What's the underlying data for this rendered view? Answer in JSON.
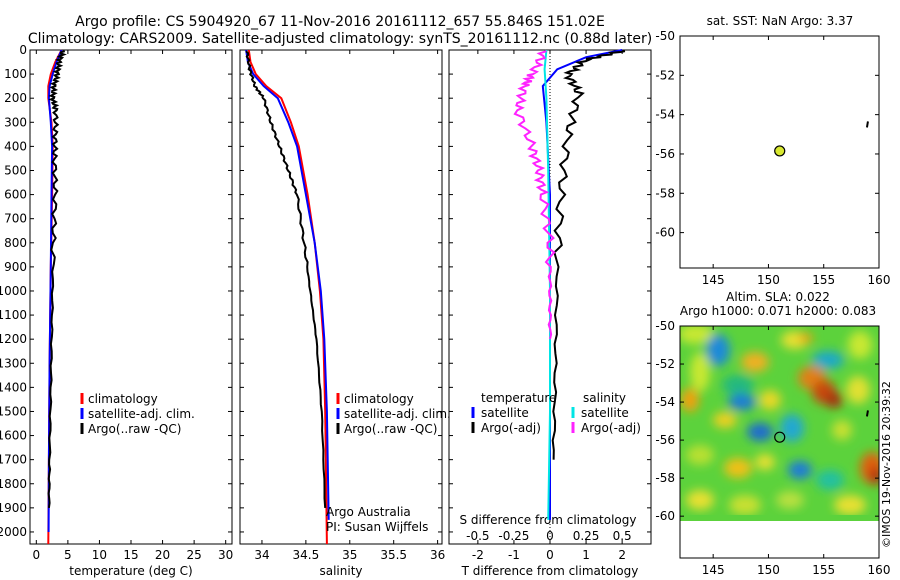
{
  "figure": {
    "title_line1": "Argo profile: CS 5904920_67 11-Nov-2016 20161112_657 55.846S 151.02E",
    "title_line2": "Climatology: CARS2009. Satellite-adjusted climatology: synTS_20161112.nc (0.88d later)",
    "sst_title": "sat. SST: NaN Argo: 3.37",
    "slа_title_line1": "Altim. SLA: 0.022",
    "sla_title_line2": "Argo h1000: 0.071 h2000: 0.083",
    "credit": "©IMOS 19-Nov-2016 20:39:32",
    "operator_line1": "Argo Australia",
    "operator_line2": "PI: Susan Wijffels"
  },
  "colors": {
    "climatology": "#ff0000",
    "satellite": "#0000ff",
    "argo": "#000000",
    "salinity_satellite": "#00e5e5",
    "salinity_argo": "#ff22ff",
    "marker": "#d8e830"
  },
  "chart_data": [
    {
      "type": "line",
      "panel": "temperature",
      "xlabel": "temperature (deg C)",
      "xlim": [
        -1,
        31
      ],
      "xticks": [
        0,
        5,
        10,
        15,
        20,
        25,
        30
      ],
      "xtick_labels": [
        "0",
        "5",
        "10",
        "15",
        "20",
        "25",
        "30"
      ],
      "ylim": [
        0,
        2050
      ],
      "yticks": [
        0,
        100,
        200,
        300,
        400,
        500,
        600,
        700,
        800,
        900,
        1000,
        1100,
        1200,
        1300,
        1400,
        1500,
        1600,
        1700,
        1800,
        1900,
        2000
      ],
      "ytick_labels": [
        "0",
        "100",
        "200",
        "300",
        "400",
        "500",
        "600",
        "700",
        "800",
        "900",
        "1000",
        "1100",
        "1200",
        "1300",
        "1400",
        "1500",
        "1600",
        "1700",
        "1800",
        "1900",
        "2000"
      ],
      "legend": [
        "climatology",
        "satellite-adj. clim.",
        "Argo(..raw -QC)"
      ],
      "legend_colors": [
        "#ff0000",
        "#0000ff",
        "#000000"
      ],
      "series": [
        {
          "name": "climatology",
          "color": "#ff0000",
          "x": [
            4.0,
            3.0,
            2.3,
            1.9,
            1.9,
            2.4,
            2.6,
            2.5,
            2.3,
            2.1,
            2.0,
            1.9
          ],
          "y": [
            0,
            50,
            100,
            150,
            200,
            300,
            400,
            600,
            900,
            1300,
            1700,
            2050
          ]
        },
        {
          "name": "satellite-adj. clim.",
          "color": "#0000ff",
          "x": [
            4.0,
            3.2,
            2.6,
            2.1,
            2.0,
            2.3,
            2.5,
            2.4,
            2.3,
            2.1,
            2.0,
            1.95
          ],
          "y": [
            0,
            50,
            100,
            150,
            200,
            300,
            400,
            600,
            900,
            1300,
            1700,
            2000
          ]
        },
        {
          "name": "Argo(..raw -QC)",
          "color": "#000000",
          "x": [
            4.2,
            3.6,
            3.3,
            2.8,
            2.6,
            3.1,
            3.0,
            2.9,
            3.0,
            2.7,
            2.5,
            2.3,
            2.1,
            2.0
          ],
          "y": [
            5,
            50,
            100,
            150,
            200,
            250,
            350,
            450,
            600,
            800,
            1100,
            1400,
            1700,
            1900
          ]
        }
      ]
    },
    {
      "type": "line",
      "panel": "salinity",
      "xlabel": "salinity",
      "xlim": [
        33.75,
        36.05
      ],
      "xticks": [
        34,
        34.5,
        35,
        35.5,
        36
      ],
      "xtick_labels": [
        "34",
        "34.5",
        "35",
        "35.5",
        "36"
      ],
      "ylim": [
        0,
        2050
      ],
      "legend": [
        "climatology",
        "satellite-adj. clim.",
        "Argo(..raw -QC)"
      ],
      "legend_colors": [
        "#ff0000",
        "#0000ff",
        "#000000"
      ],
      "series": [
        {
          "name": "climatology",
          "color": "#ff0000",
          "x": [
            33.85,
            33.87,
            33.93,
            34.05,
            34.22,
            34.33,
            34.42,
            34.52,
            34.6,
            34.66,
            34.7,
            34.72,
            34.74
          ],
          "y": [
            0,
            50,
            100,
            150,
            200,
            300,
            400,
            600,
            800,
            1000,
            1200,
            1500,
            2050
          ]
        },
        {
          "name": "satellite-adj. clim.",
          "color": "#0000ff",
          "x": [
            33.82,
            33.84,
            33.9,
            34.02,
            34.18,
            34.3,
            34.4,
            34.5,
            34.6,
            34.67,
            34.71,
            34.74,
            34.76
          ],
          "y": [
            0,
            50,
            100,
            150,
            200,
            300,
            400,
            600,
            800,
            1000,
            1200,
            1500,
            1950
          ]
        },
        {
          "name": "Argo(..raw -QC)",
          "color": "#000000",
          "x": [
            33.83,
            33.86,
            33.92,
            34.02,
            34.1,
            34.2,
            34.3,
            34.4,
            34.48,
            34.55,
            34.62,
            34.68,
            34.72
          ],
          "y": [
            5,
            80,
            150,
            200,
            300,
            400,
            500,
            600,
            800,
            1000,
            1200,
            1500,
            1900
          ]
        }
      ]
    },
    {
      "type": "line",
      "panel": "difference",
      "xlabel": "T difference from climatology",
      "xlabel_top": "S difference from climatology",
      "xlim": [
        -2.8,
        2.8
      ],
      "xticks": [
        -2,
        -1,
        0,
        1,
        2
      ],
      "xtick_labels": [
        "-2",
        "-1",
        "0",
        "1",
        "2"
      ],
      "top_ticks": [
        -0.5,
        -0.25,
        0,
        0.25,
        0.5
      ],
      "top_tick_labels": [
        "-0.5",
        "-0.25",
        "0",
        "0.25",
        "0.5"
      ],
      "ylim": [
        0,
        2050
      ],
      "legend_headers": [
        "temperature",
        "salinity"
      ],
      "legend": [
        "satellite",
        "Argo(-adj)",
        "satellite",
        "Argo(-adj)"
      ],
      "legend_colors": [
        "#0000ff",
        "#000000",
        "#00e5e5",
        "#ff22ff"
      ],
      "series": [
        {
          "name": "temperature satellite",
          "color": "#0000ff",
          "x": [
            2.0,
            1.0,
            0.2,
            -0.2,
            -0.1,
            0.0,
            0.0,
            0.0,
            0.0
          ],
          "y": [
            0,
            30,
            80,
            150,
            300,
            600,
            1000,
            1500,
            1950
          ]
        },
        {
          "name": "temperature Argo(-adj)",
          "color": "#000000",
          "x": [
            2.0,
            1.0,
            0.5,
            0.8,
            0.5,
            0.3,
            0.2,
            0.15,
            0.1
          ],
          "y": [
            5,
            40,
            100,
            180,
            350,
            600,
            900,
            1300,
            1700
          ]
        },
        {
          "name": "salinity satellite",
          "color": "#00e5e5",
          "x": [
            -0.1,
            -0.15,
            -0.1,
            -0.05,
            0.0,
            0.0,
            -0.05
          ],
          "y": [
            0,
            80,
            200,
            500,
            1000,
            1500,
            1950
          ]
        },
        {
          "name": "salinity Argo(-adj)",
          "color": "#ff22ff",
          "x": [
            -0.15,
            -0.5,
            -0.7,
            -0.9,
            -0.5,
            -0.3,
            -0.2,
            0.0,
            0.0,
            0.0
          ],
          "y": [
            5,
            100,
            150,
            250,
            400,
            500,
            600,
            800,
            1000,
            1200
          ]
        }
      ]
    },
    {
      "type": "scatter",
      "panel": "sst_map",
      "title": "sat. SST: NaN Argo: 3.37",
      "xlim": [
        142,
        160
      ],
      "ylim": [
        -61.8,
        -50
      ],
      "xticks": [
        145,
        150,
        155,
        160
      ],
      "xtick_labels": [
        "145",
        "150",
        "155",
        "160"
      ],
      "yticks": [
        -50,
        -52,
        -54,
        -56,
        -58,
        -60
      ],
      "ytick_labels": [
        "-50",
        "-52",
        "-54",
        "-56",
        "-58",
        "-60"
      ],
      "points": [
        {
          "x": 151.02,
          "y": -55.846
        }
      ]
    },
    {
      "type": "heatmap",
      "panel": "sla_map",
      "title": "Altim. SLA: 0.022",
      "subtitle": "Argo h1000: 0.071 h2000: 0.083",
      "xlim": [
        142,
        160
      ],
      "ylim": [
        -62.2,
        -50
      ],
      "xticks": [
        145,
        150,
        155,
        160
      ],
      "xtick_labels": [
        "145",
        "150",
        "155",
        "160"
      ],
      "yticks": [
        -50,
        -52,
        -54,
        -56,
        -58,
        -60
      ],
      "ytick_labels": [
        "-50",
        "-52",
        "-54",
        "-56",
        "-58",
        "-60"
      ],
      "points": [
        {
          "x": 151.02,
          "y": -55.846
        }
      ]
    }
  ]
}
